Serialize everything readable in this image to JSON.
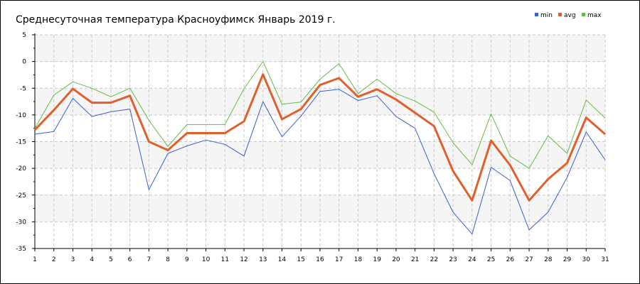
{
  "chart_data": {
    "type": "line",
    "title": "Среднесуточная температура Красноуфимск  Январь 2019 г.",
    "xlabel": "",
    "ylabel": "",
    "x": [
      1,
      2,
      3,
      4,
      5,
      6,
      7,
      8,
      9,
      10,
      11,
      12,
      13,
      14,
      15,
      16,
      17,
      18,
      19,
      20,
      21,
      22,
      23,
      24,
      25,
      26,
      27,
      28,
      29,
      30,
      31
    ],
    "x_tick_labels": [
      "1",
      "2",
      "3",
      "4",
      "5",
      "6",
      "7",
      "8",
      "9",
      "10",
      "11",
      "12",
      "13",
      "14",
      "15",
      "16",
      "17",
      "18",
      "19",
      "20",
      "21",
      "22",
      "23",
      "24",
      "25",
      "26",
      "27",
      "28",
      "29",
      "30",
      "31"
    ],
    "xlim": [
      1,
      31
    ],
    "ylim": [
      -35,
      5
    ],
    "y_ticks": [
      5,
      0,
      -5,
      -10,
      -15,
      -20,
      -25,
      -30,
      -35
    ],
    "y_tick_labels": [
      "5",
      "0",
      "-5",
      "-10",
      "-15",
      "-20",
      "-25",
      "-30",
      "-35"
    ],
    "grid": true,
    "legend_position": "top-right",
    "series": [
      {
        "name": "min",
        "color": "#3a5fcd",
        "values": [
          -13.6,
          -13.1,
          -6.9,
          -10.3,
          -9.4,
          -8.9,
          -24.0,
          -17.2,
          -15.8,
          -14.7,
          -15.5,
          -17.7,
          -7.5,
          -14.1,
          -10.2,
          -5.6,
          -5.2,
          -7.3,
          -6.4,
          -10.3,
          -12.5,
          -21.0,
          -28.2,
          -32.3,
          -19.8,
          -22.3,
          -31.5,
          -28.2,
          -21.7,
          -13.2,
          -18.4
        ]
      },
      {
        "name": "avg",
        "color": "#e0602c",
        "values": [
          -12.8,
          -9.1,
          -5.1,
          -7.7,
          -7.7,
          -6.4,
          -15.0,
          -16.6,
          -13.4,
          -13.4,
          -13.4,
          -11.2,
          -2.4,
          -10.8,
          -8.9,
          -4.4,
          -3.1,
          -6.6,
          -5.2,
          -7.1,
          -9.6,
          -12.1,
          -20.5,
          -26.0,
          -14.8,
          -19.4,
          -26.0,
          -22.0,
          -19.0,
          -10.5,
          -13.6
        ]
      },
      {
        "name": "max",
        "color": "#66bb44",
        "values": [
          -12.5,
          -6.3,
          -3.8,
          -5.0,
          -6.6,
          -5.0,
          -11.0,
          -15.9,
          -11.8,
          -11.8,
          -11.8,
          -5.1,
          0.0,
          -8.0,
          -7.6,
          -3.3,
          -0.4,
          -6.0,
          -3.3,
          -6.0,
          -7.4,
          -9.5,
          -15.2,
          -19.3,
          -9.8,
          -17.7,
          -20.0,
          -13.9,
          -17.2,
          -7.2,
          -10.6
        ]
      }
    ]
  }
}
